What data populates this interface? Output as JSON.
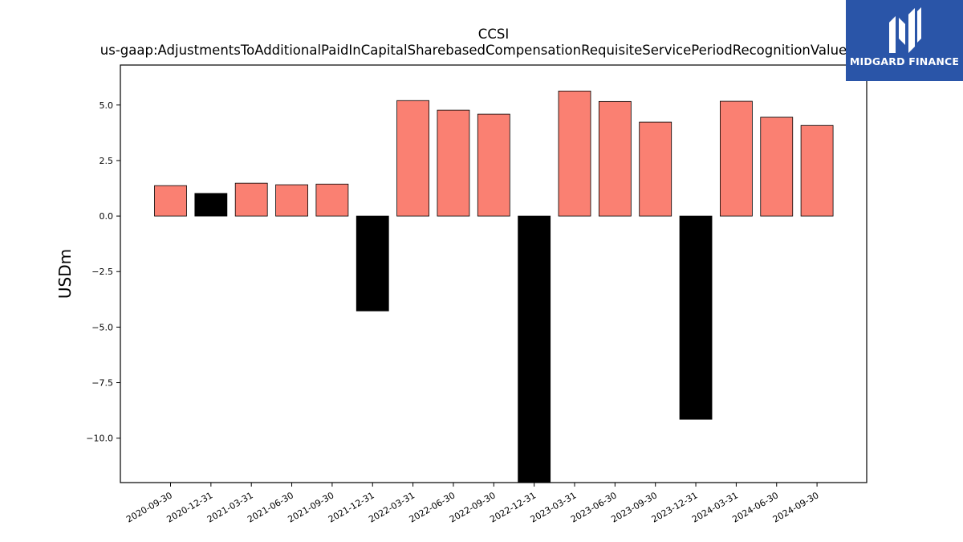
{
  "chart_data": {
    "type": "bar",
    "title": "CCSI",
    "subtitle": "us-gaap:AdjustmentsToAdditionalPaidInCapitalSharebasedCompensationRequisiteServicePeriodRecognitionValue",
    "xlabel": "",
    "ylabel": "USDm",
    "ylim": [
      -12.0,
      6.8
    ],
    "yticks": [
      5.0,
      2.5,
      0.0,
      -2.5,
      -5.0,
      -7.5,
      -10.0
    ],
    "ytick_labels": [
      "5.0",
      "2.5",
      "0.0",
      "−2.5",
      "−5.0",
      "−7.5",
      "−10.0"
    ],
    "categories": [
      "2020-09-30",
      "2020-12-31",
      "2021-03-31",
      "2021-06-30",
      "2021-09-30",
      "2021-12-31",
      "2022-03-31",
      "2022-06-30",
      "2022-09-30",
      "2022-12-31",
      "2023-03-31",
      "2023-06-30",
      "2023-09-30",
      "2023-12-31",
      "2024-03-31",
      "2024-06-30",
      "2024-09-30"
    ],
    "values": [
      1.37,
      1.02,
      1.48,
      1.41,
      1.44,
      -4.27,
      5.2,
      4.77,
      4.59,
      -12.4,
      5.63,
      5.16,
      4.23,
      -9.15,
      5.17,
      4.45,
      4.08
    ],
    "colors": {
      "highlight": "#fa8072",
      "other": "#000000",
      "edge": "#000000"
    },
    "highlight_flags": [
      true,
      false,
      true,
      true,
      true,
      false,
      true,
      true,
      true,
      false,
      true,
      true,
      true,
      false,
      true,
      true,
      true
    ],
    "grid": false,
    "legend": "none"
  },
  "logo": {
    "text": "MIDGARD FINANCE",
    "background": "#2a55a8",
    "icon": "midgard-logo-mark"
  }
}
